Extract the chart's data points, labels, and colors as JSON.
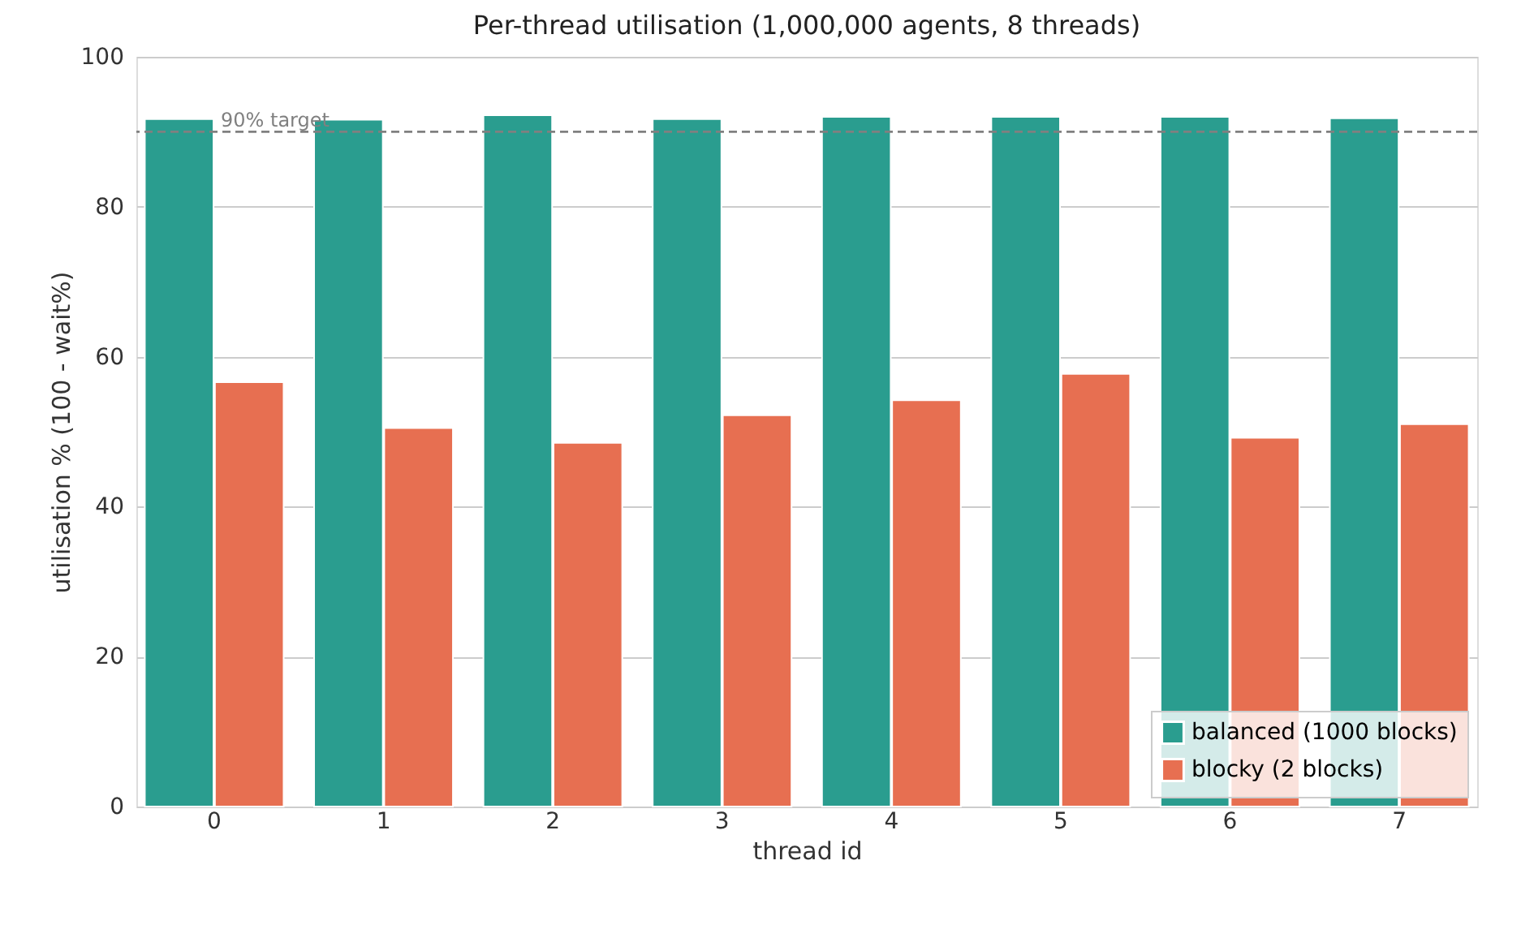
{
  "chart_data": {
    "type": "bar",
    "title": "Per-thread utilisation (1,000,000 agents, 8 threads)",
    "xlabel": "thread id",
    "ylabel": "utilisation % (100 - wait%)",
    "categories": [
      "0",
      "1",
      "2",
      "3",
      "4",
      "5",
      "6",
      "7"
    ],
    "series": [
      {
        "name": "balanced (1000 blocks)",
        "color": "#2a9d8f",
        "values": [
          91.7,
          91.6,
          92.2,
          91.7,
          92.0,
          92.0,
          92.0,
          91.8
        ]
      },
      {
        "name": "blocky (2 blocks)",
        "color": "#e76f51",
        "values": [
          56.6,
          50.5,
          48.5,
          52.2,
          54.2,
          57.7,
          49.2,
          51.0
        ]
      }
    ],
    "ylim": [
      0,
      100
    ],
    "yticks": [
      0,
      20,
      40,
      60,
      80,
      100
    ],
    "grid": "y",
    "legend": "bottom right",
    "ref_lines": [
      {
        "axis": "y",
        "value": 90,
        "label": "90% target",
        "color": "#808080",
        "line_style": "dashed"
      }
    ]
  }
}
